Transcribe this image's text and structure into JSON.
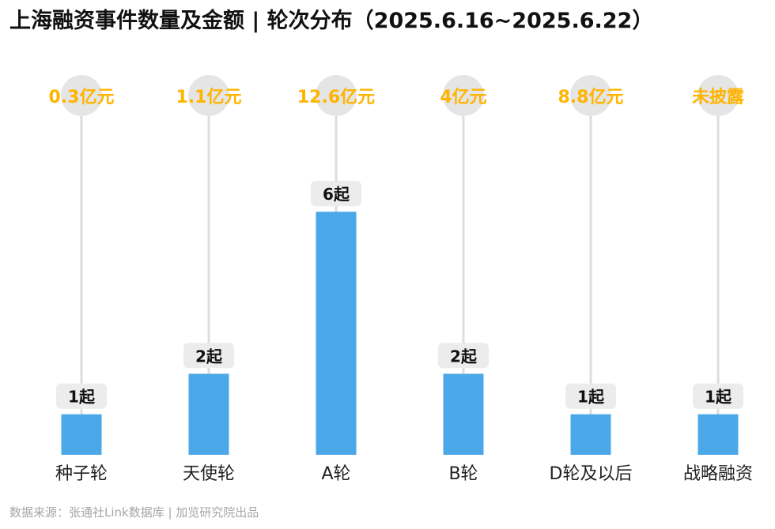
{
  "title": "上海融资事件数量及金额 | 轮次分布（2025.6.16~2025.6.22）",
  "source": "数据来源：张通社Link数据库 | 加览研究院出品",
  "colors": {
    "bar": "#4aa8e8",
    "amount_text": "#ffb400",
    "amount_circle": "#e5e5e5",
    "stem": "#dddddd",
    "count_badge": "#ececec",
    "count_text": "#111111",
    "category_text": "#222222"
  },
  "chart_data": {
    "type": "bar",
    "categories": [
      "种子轮",
      "天使轮",
      "A轮",
      "B轮",
      "D轮及以后",
      "战略融资"
    ],
    "series": [
      {
        "values": [
          1,
          2,
          6,
          2,
          1,
          1
        ],
        "labels": [
          "1起",
          "2起",
          "6起",
          "2起",
          "1起",
          "1起"
        ]
      }
    ],
    "amount_labels": [
      "0.3亿元",
      "1.1亿元",
      "12.6亿元",
      "4亿元",
      "8.8亿元",
      "未披露"
    ],
    "ylim": [
      0,
      6
    ],
    "grid": false
  }
}
